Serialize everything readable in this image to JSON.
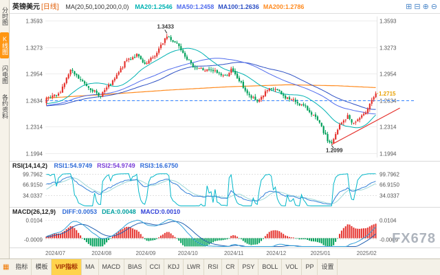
{
  "app": {
    "title": "英镑美元",
    "period_tag": "[日线]",
    "watermark": "FX678"
  },
  "header": {
    "ma_label": "MA(20,50,100,200,0,0)",
    "ma_values": [
      {
        "label": "MA20:1.2546",
        "color": "#00b2b2"
      },
      {
        "label": "MA50:1.2458",
        "color": "#4f6bed"
      },
      {
        "label": "MA100:1.2636",
        "color": "#2c4fc4"
      },
      {
        "label": "MA200:1.2786",
        "color": "#ff8a1e"
      }
    ],
    "icons": [
      {
        "name": "grid-layout-icon",
        "glyph": "⊞"
      },
      {
        "name": "split-layout-icon",
        "glyph": "⊟"
      },
      {
        "name": "zoom-in-icon",
        "glyph": "⊕"
      },
      {
        "name": "zoom-out-icon",
        "glyph": "⊖"
      }
    ]
  },
  "sidebar": {
    "items": [
      {
        "label": "分时图",
        "active": false
      },
      {
        "label": "K线图",
        "active": true
      },
      {
        "label": "闪电图",
        "active": false
      },
      {
        "label": "各约资料",
        "active": false
      }
    ]
  },
  "toolbar": {
    "grid_icon_glyph": "▦",
    "items": [
      {
        "label": "指标"
      },
      {
        "label": "模板"
      },
      {
        "label": "VIP指标",
        "highlight": true
      },
      {
        "label": "MA"
      },
      {
        "label": "MACD"
      },
      {
        "label": "BIAS"
      },
      {
        "label": "CCI"
      },
      {
        "label": "KDJ"
      },
      {
        "label": "LWR"
      },
      {
        "label": "RSI"
      },
      {
        "label": "CR"
      },
      {
        "label": "PSY"
      },
      {
        "label": "BOLL"
      },
      {
        "label": "VOL"
      },
      {
        "label": "PP"
      },
      {
        "label": "设置"
      }
    ]
  },
  "chart_data": {
    "main": {
      "type": "candlestick",
      "title": "英镑美元 [日线]",
      "num_candles": 165,
      "y_ticks": [
        1.3593,
        1.3273,
        1.2954,
        1.2634,
        1.2314,
        1.1994
      ],
      "ylim": [
        1.1994,
        1.3593
      ],
      "x_ticks": [
        {
          "label": "2024/07",
          "index": 0
        },
        {
          "label": "2024/08",
          "index": 23
        },
        {
          "label": "2024/09",
          "index": 45
        },
        {
          "label": "2024/10",
          "index": 66
        },
        {
          "label": "2024/11",
          "index": 89
        },
        {
          "label": "2024/12",
          "index": 110
        },
        {
          "label": "2025/01",
          "index": 132
        },
        {
          "label": "2025/02",
          "index": 155
        }
      ],
      "annotations": {
        "high": {
          "index": 60,
          "price": 1.3433
        },
        "low": {
          "index": 142,
          "price": 1.2099
        },
        "last": {
          "price": 1.2715
        }
      },
      "reference_price": 1.2634,
      "trendline": [
        [
          142,
          1.2099
        ],
        [
          176,
          1.254
        ]
      ],
      "price_anchors": [
        [
          0,
          1.264
        ],
        [
          6,
          1.27
        ],
        [
          12,
          1.299
        ],
        [
          18,
          1.285
        ],
        [
          23,
          1.276
        ],
        [
          26,
          1.268
        ],
        [
          33,
          1.285
        ],
        [
          40,
          1.312
        ],
        [
          45,
          1.318
        ],
        [
          49,
          1.305
        ],
        [
          55,
          1.32
        ],
        [
          60,
          1.342
        ],
        [
          63,
          1.335
        ],
        [
          66,
          1.33
        ],
        [
          72,
          1.306
        ],
        [
          78,
          1.3
        ],
        [
          84,
          1.298
        ],
        [
          89,
          1.292
        ],
        [
          92,
          1.3
        ],
        [
          96,
          1.287
        ],
        [
          101,
          1.268
        ],
        [
          105,
          1.262
        ],
        [
          110,
          1.275
        ],
        [
          114,
          1.277
        ],
        [
          118,
          1.268
        ],
        [
          124,
          1.262
        ],
        [
          128,
          1.256
        ],
        [
          132,
          1.248
        ],
        [
          136,
          1.235
        ],
        [
          140,
          1.215
        ],
        [
          142,
          1.2099
        ],
        [
          146,
          1.233
        ],
        [
          150,
          1.244
        ],
        [
          153,
          1.235
        ],
        [
          155,
          1.24
        ],
        [
          158,
          1.245
        ],
        [
          161,
          1.26
        ],
        [
          164,
          1.2715
        ]
      ],
      "ma200_anchors": [
        [
          0,
          1.266
        ],
        [
          30,
          1.2705
        ],
        [
          60,
          1.2755
        ],
        [
          90,
          1.2795
        ],
        [
          120,
          1.282
        ],
        [
          145,
          1.2808
        ],
        [
          164,
          1.2786
        ]
      ],
      "ma_periods": {
        "ma20": 20,
        "ma50": 50,
        "ma100": 100
      },
      "colors": {
        "up": "#e5322d",
        "down": "#00a05a",
        "ma20": "#00b2b2",
        "ma50": "#4f6bed",
        "ma100": "#2c4fc4",
        "ma200": "#ff8a1e",
        "trendline": "#e5322d",
        "reference": "#2f80ff",
        "last_label": "#e8a000",
        "annotation": "#333333"
      }
    },
    "rsi": {
      "type": "line",
      "title": "RSI(14,14,2)",
      "labels": [
        {
          "label": "RSI1:54.9749",
          "color": "#2f6bd8"
        },
        {
          "label": "RSI2:54.9749",
          "color": "#7a3fd8"
        },
        {
          "label": "RSI3:16.6750",
          "color": "#2f6bd8"
        }
      ],
      "y_ticks": [
        99.7962,
        66.915,
        34.0337
      ],
      "ylim": [
        0,
        110
      ],
      "periods": {
        "rsi1": 14,
        "rsi3": 2,
        "rsi2_smooth": 6
      },
      "colors": {
        "rsi1": "#2f7ed8",
        "rsi2": "#9fd8d8",
        "rsi3": "#00b7c9"
      }
    },
    "macd": {
      "type": "macd",
      "title": "MACD(26,12,9)",
      "labels": [
        {
          "label": "DIFF:0.0053",
          "color": "#2f6bd8"
        },
        {
          "label": "DEA:0.0048",
          "color": "#00a0a0"
        },
        {
          "label": "MACD:0.0010",
          "color": "#2f3fd8"
        }
      ],
      "y_ticks": [
        0.0104,
        -0.0009
      ],
      "ylim": [
        -0.0055,
        0.0125
      ],
      "periods": {
        "fast": 12,
        "slow": 26,
        "signal": 9
      },
      "colors": {
        "diff": "#2f9ed8",
        "dea": "#1f5fb0",
        "hist_up": "#e5322d",
        "hist_down": "#00a05a"
      }
    }
  }
}
